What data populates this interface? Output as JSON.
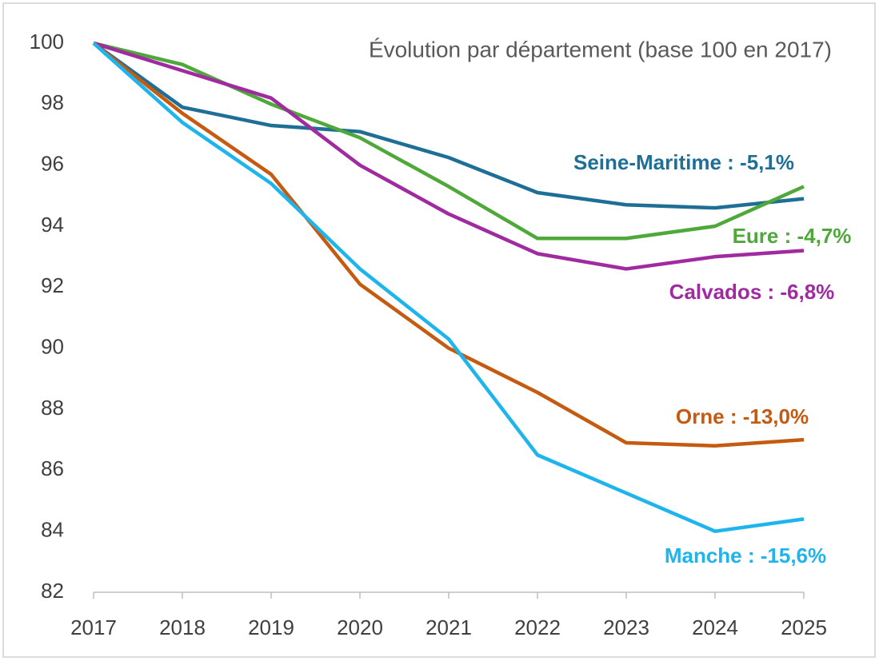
{
  "chart_data": {
    "type": "line",
    "title": "Évolution par département (base 100 en 2017)",
    "categories": [
      "2017",
      "2018",
      "2019",
      "2020",
      "2021",
      "2022",
      "2023",
      "2024",
      "2025"
    ],
    "series": [
      {
        "label": "Seine-Maritime : -5,1%",
        "color": "#1e6e96",
        "values": [
          100,
          97.9,
          97.3,
          97.1,
          96.25,
          95.1,
          94.7,
          94.6,
          94.9
        ]
      },
      {
        "label": "Eure : -4,7%",
        "color": "#4ea83a",
        "values": [
          100,
          99.3,
          98.0,
          96.9,
          95.3,
          93.6,
          93.6,
          94.0,
          95.3
        ]
      },
      {
        "label": "Calvados : -6,8%",
        "color": "#a02aa0",
        "values": [
          100,
          99.1,
          98.2,
          96.0,
          94.4,
          93.1,
          92.6,
          93.0,
          93.2
        ]
      },
      {
        "label": "Orne : -13,0%",
        "color": "#c55a11",
        "values": [
          100,
          97.7,
          95.7,
          92.1,
          90.0,
          88.55,
          86.9,
          86.8,
          87.0
        ]
      },
      {
        "label": "Manche : -15,6%",
        "color": "#1eb4ec",
        "values": [
          100,
          97.4,
          95.4,
          92.6,
          90.3,
          86.5,
          85.25,
          84.0,
          84.4
        ]
      }
    ],
    "ylim": [
      82,
      100
    ],
    "yticks": [
      82,
      84,
      86,
      88,
      90,
      92,
      94,
      96,
      98,
      100
    ],
    "grid": false
  }
}
